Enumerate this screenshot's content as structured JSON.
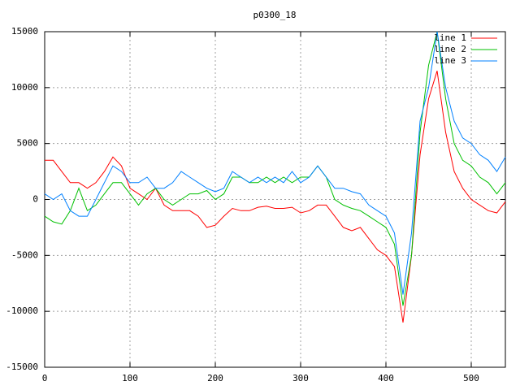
{
  "chart_data": {
    "type": "line",
    "title": "p0300_18",
    "x": [
      0,
      10,
      20,
      30,
      40,
      50,
      60,
      70,
      80,
      90,
      100,
      110,
      120,
      130,
      140,
      150,
      160,
      170,
      180,
      190,
      200,
      210,
      220,
      230,
      240,
      250,
      260,
      270,
      280,
      290,
      300,
      310,
      320,
      330,
      340,
      350,
      360,
      370,
      380,
      390,
      400,
      410,
      420,
      430,
      440,
      450,
      460,
      470,
      480,
      490,
      500,
      510,
      520,
      530,
      540
    ],
    "series": [
      {
        "name": "line 1",
        "color": "#ff0000",
        "values": [
          3500,
          3500,
          2500,
          1500,
          1500,
          1000,
          1500,
          2500,
          3800,
          3000,
          1000,
          500,
          0,
          1000,
          -500,
          -1000,
          -1000,
          -1000,
          -1500,
          -2500,
          -2300,
          -1500,
          -800,
          -1000,
          -1000,
          -700,
          -600,
          -800,
          -800,
          -700,
          -1200,
          -1000,
          -500,
          -500,
          -1500,
          -2500,
          -2800,
          -2500,
          -3500,
          -4500,
          -5000,
          -6000,
          -11000,
          -5000,
          4000,
          9000,
          11500,
          6000,
          2500,
          1000,
          0,
          -500,
          -1000,
          -1200,
          -200
        ]
      },
      {
        "name": "line 2",
        "color": "#00c000",
        "values": [
          -1500,
          -2000,
          -2200,
          -1000,
          1000,
          -1000,
          -500,
          500,
          1500,
          1500,
          500,
          -500,
          500,
          1000,
          0,
          -500,
          0,
          500,
          500,
          800,
          0,
          500,
          2000,
          2000,
          1500,
          1500,
          2000,
          1500,
          2000,
          1500,
          2000,
          2000,
          3000,
          2000,
          0,
          -500,
          -800,
          -1000,
          -1500,
          -2000,
          -2500,
          -4000,
          -9500,
          -5000,
          6000,
          12000,
          15000,
          9000,
          5000,
          3500,
          3000,
          2000,
          1500,
          500,
          1500
        ]
      },
      {
        "name": "line 3",
        "color": "#0080ff",
        "values": [
          500,
          0,
          500,
          -1000,
          -1500,
          -1500,
          0,
          1500,
          3000,
          2500,
          1500,
          1500,
          2000,
          1000,
          1000,
          1500,
          2500,
          2000,
          1500,
          1000,
          700,
          1000,
          2500,
          2000,
          1500,
          2000,
          1500,
          2000,
          1500,
          2500,
          1500,
          2000,
          3000,
          2000,
          1000,
          1000,
          700,
          500,
          -500,
          -1000,
          -1500,
          -3000,
          -8500,
          -3000,
          7000,
          10000,
          15000,
          10000,
          7000,
          5500,
          5000,
          4000,
          3500,
          2500,
          3800
        ]
      }
    ],
    "xlim": [
      0,
      540
    ],
    "xticks": [
      0,
      100,
      200,
      300,
      400,
      500
    ],
    "ylim": [
      -15000,
      15000
    ],
    "yticks": [
      -15000,
      -10000,
      -5000,
      0,
      5000,
      10000,
      15000
    ],
    "grid": true,
    "legend": "top-right"
  }
}
